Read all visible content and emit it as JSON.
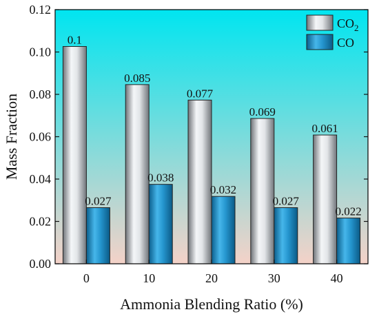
{
  "chart_data": {
    "type": "bar",
    "title": "",
    "xlabel": "Ammonia Blending Ratio (%)",
    "ylabel": "Mass Fraction",
    "categories": [
      "0",
      "10",
      "20",
      "30",
      "40"
    ],
    "ylim": [
      0,
      0.12
    ],
    "yticks": [
      "0.00",
      "0.02",
      "0.04",
      "0.06",
      "0.08",
      "0.10",
      "0.12"
    ],
    "ytick_values": [
      0,
      0.02,
      0.04,
      0.06,
      0.08,
      0.1,
      0.12
    ],
    "series": [
      {
        "name": "CO2",
        "name_main": "CO",
        "name_sub": "2",
        "values": [
          0.1026,
          0.0846,
          0.0773,
          0.0686,
          0.0608
        ],
        "data_labels": [
          "0.1",
          "0.085",
          "0.077",
          "0.069",
          "0.061"
        ],
        "color": "#c8ccd0"
      },
      {
        "name": "CO",
        "name_main": "CO",
        "name_sub": "",
        "values": [
          0.0265,
          0.0375,
          0.0318,
          0.0265,
          0.0216
        ],
        "data_labels": [
          "0.027",
          "0.038",
          "0.032",
          "0.027",
          "0.022"
        ],
        "color": "#1e8fc8"
      }
    ],
    "legend_position": "top-right",
    "grid": false,
    "background_gradient": [
      "#00e5f0",
      "#f4d2c8"
    ]
  }
}
